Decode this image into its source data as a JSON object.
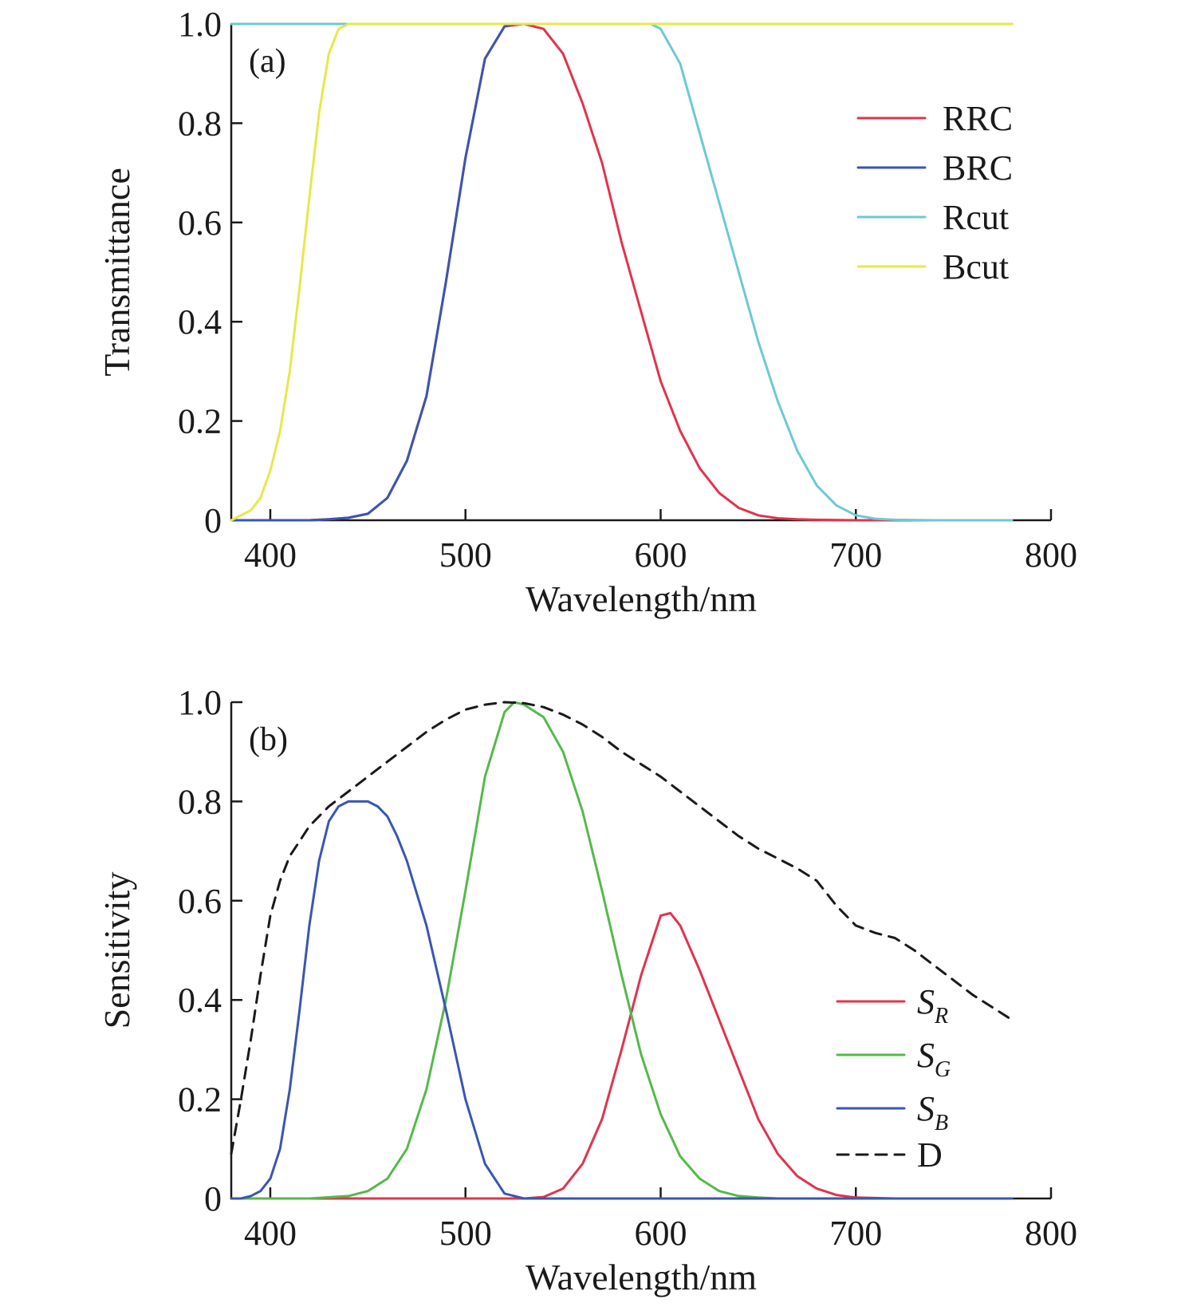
{
  "chart_data": [
    {
      "type": "line",
      "panel_label": "(a)",
      "xlabel": "Wavelength/nm",
      "ylabel": "Transmittance",
      "xlim": [
        380,
        780
      ],
      "ylim": [
        0,
        1.0
      ],
      "x_ticks": [
        400,
        500,
        600,
        700,
        800
      ],
      "x_tick_labels": [
        "400",
        "500",
        "600",
        "700",
        "800"
      ],
      "y_ticks": [
        0,
        0.2,
        0.4,
        0.6,
        0.8,
        1.0
      ],
      "y_tick_labels": [
        "0",
        "0.2",
        "0.4",
        "0.6",
        "0.8",
        "1.0"
      ],
      "legend_position": "top-right",
      "series": [
        {
          "name": "RRC",
          "color": "#e0344e",
          "dashed": false,
          "x": [
            380,
            400,
            420,
            430,
            440,
            450,
            460,
            470,
            480,
            490,
            500,
            510,
            520,
            530,
            540,
            550,
            560,
            570,
            580,
            590,
            600,
            610,
            620,
            630,
            640,
            650,
            660,
            670,
            680,
            700,
            720,
            780
          ],
          "y": [
            0,
            0,
            0,
            0.002,
            0.005,
            0.013,
            0.045,
            0.12,
            0.25,
            0.48,
            0.73,
            0.93,
            0.995,
            1.0,
            0.99,
            0.94,
            0.84,
            0.72,
            0.56,
            0.42,
            0.28,
            0.18,
            0.105,
            0.055,
            0.025,
            0.01,
            0.004,
            0.002,
            0.001,
            0,
            0,
            0
          ]
        },
        {
          "name": "BRC",
          "color": "#3a56b0",
          "dashed": false,
          "x": [
            380,
            400,
            420,
            430,
            440,
            450,
            460,
            470,
            480,
            490,
            500,
            510,
            520,
            525,
            530,
            540,
            550,
            560,
            570,
            580,
            590,
            600,
            620,
            640,
            660,
            680,
            700,
            720,
            740,
            760,
            780
          ],
          "y": [
            0,
            0,
            0,
            0.002,
            0.005,
            0.013,
            0.045,
            0.12,
            0.25,
            0.48,
            0.73,
            0.93,
            0.995,
            1.0,
            1.0,
            1.0,
            1.0,
            1.0,
            1.0,
            1.0,
            1.0,
            1.0,
            1.0,
            1.0,
            1.0,
            1.0,
            1.0,
            1.0,
            1.0,
            1.0,
            1.0
          ]
        },
        {
          "name": "Rcut",
          "color": "#6cc9d3",
          "dashed": false,
          "x": [
            380,
            400,
            450,
            500,
            550,
            580,
            590,
            595,
            600,
            610,
            620,
            630,
            640,
            650,
            660,
            670,
            680,
            690,
            700,
            710,
            720,
            740,
            780
          ],
          "y": [
            1.0,
            1.0,
            1.0,
            1.0,
            1.0,
            1.0,
            1.0,
            1.0,
            0.99,
            0.92,
            0.78,
            0.64,
            0.5,
            0.36,
            0.24,
            0.14,
            0.07,
            0.03,
            0.01,
            0.003,
            0.001,
            0,
            0
          ]
        },
        {
          "name": "Bcut",
          "color": "#e6e84a",
          "dashed": false,
          "x": [
            380,
            385,
            390,
            395,
            400,
            405,
            410,
            415,
            420,
            425,
            430,
            435,
            440,
            450,
            500,
            600,
            700,
            780
          ],
          "y": [
            0,
            0.01,
            0.02,
            0.045,
            0.1,
            0.18,
            0.3,
            0.47,
            0.65,
            0.82,
            0.94,
            0.99,
            1.0,
            1.0,
            1.0,
            1.0,
            1.0,
            1.0
          ]
        }
      ]
    },
    {
      "type": "line",
      "panel_label": "(b)",
      "xlabel": "Wavelength/nm",
      "ylabel": "Sensitivity",
      "xlim": [
        380,
        780
      ],
      "ylim": [
        0,
        1.0
      ],
      "x_ticks": [
        400,
        500,
        600,
        700,
        800
      ],
      "x_tick_labels": [
        "400",
        "500",
        "600",
        "700",
        "800"
      ],
      "y_ticks": [
        0,
        0.2,
        0.4,
        0.6,
        0.8,
        1.0
      ],
      "y_tick_labels": [
        "0",
        "0.2",
        "0.4",
        "0.6",
        "0.8",
        "1.0"
      ],
      "legend_position": "bottom-right",
      "series": [
        {
          "name": "S",
          "subscript": "R",
          "color": "#e0344e",
          "dashed": false,
          "x": [
            380,
            500,
            530,
            540,
            550,
            560,
            570,
            580,
            590,
            600,
            605,
            610,
            620,
            630,
            640,
            650,
            660,
            670,
            680,
            690,
            700,
            720,
            780
          ],
          "y": [
            0,
            0,
            0,
            0.003,
            0.02,
            0.07,
            0.16,
            0.3,
            0.45,
            0.57,
            0.575,
            0.55,
            0.46,
            0.36,
            0.26,
            0.16,
            0.09,
            0.045,
            0.02,
            0.007,
            0.002,
            0,
            0
          ]
        },
        {
          "name": "S",
          "subscript": "G",
          "color": "#55b94a",
          "dashed": false,
          "x": [
            380,
            420,
            440,
            450,
            460,
            470,
            480,
            490,
            500,
            510,
            520,
            525,
            530,
            540,
            550,
            560,
            570,
            580,
            590,
            600,
            610,
            620,
            630,
            640,
            650,
            660,
            680,
            700,
            780
          ],
          "y": [
            0,
            0,
            0.005,
            0.015,
            0.04,
            0.1,
            0.22,
            0.4,
            0.62,
            0.85,
            0.98,
            1.0,
            0.995,
            0.97,
            0.9,
            0.78,
            0.62,
            0.45,
            0.29,
            0.17,
            0.085,
            0.04,
            0.015,
            0.005,
            0.002,
            0,
            0,
            0,
            0
          ]
        },
        {
          "name": "S",
          "subscript": "B",
          "color": "#3a56b0",
          "dashed": false,
          "x": [
            380,
            385,
            390,
            395,
            400,
            405,
            410,
            415,
            420,
            425,
            430,
            435,
            440,
            445,
            450,
            455,
            460,
            465,
            470,
            480,
            490,
            500,
            510,
            520,
            530,
            540,
            780
          ],
          "y": [
            0,
            0,
            0.005,
            0.015,
            0.04,
            0.1,
            0.22,
            0.38,
            0.55,
            0.68,
            0.76,
            0.79,
            0.8,
            0.8,
            0.8,
            0.79,
            0.77,
            0.73,
            0.68,
            0.55,
            0.38,
            0.2,
            0.07,
            0.01,
            0,
            0,
            0
          ]
        },
        {
          "name": "D",
          "subscript": "",
          "color": "#1a1a1a",
          "dashed": true,
          "x": [
            380,
            385,
            390,
            395,
            400,
            405,
            410,
            415,
            420,
            430,
            440,
            450,
            460,
            470,
            480,
            490,
            500,
            510,
            520,
            530,
            540,
            550,
            560,
            570,
            580,
            590,
            600,
            610,
            620,
            630,
            640,
            650,
            660,
            670,
            680,
            690,
            700,
            710,
            720,
            730,
            740,
            750,
            760,
            770,
            780
          ],
          "y": [
            0.09,
            0.2,
            0.32,
            0.45,
            0.57,
            0.64,
            0.69,
            0.72,
            0.75,
            0.79,
            0.82,
            0.85,
            0.88,
            0.91,
            0.94,
            0.965,
            0.985,
            0.995,
            1.0,
            0.998,
            0.99,
            0.975,
            0.955,
            0.93,
            0.9,
            0.875,
            0.85,
            0.82,
            0.79,
            0.76,
            0.73,
            0.705,
            0.685,
            0.665,
            0.64,
            0.59,
            0.55,
            0.535,
            0.525,
            0.5,
            0.47,
            0.44,
            0.41,
            0.385,
            0.36
          ]
        }
      ]
    }
  ]
}
